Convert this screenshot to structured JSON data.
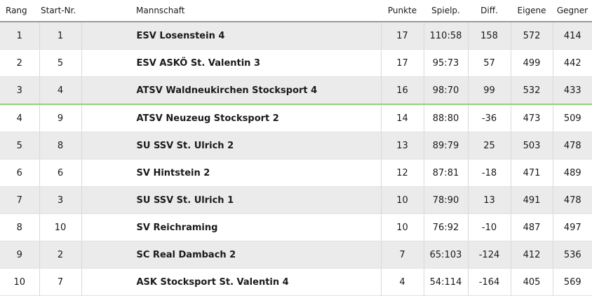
{
  "headers": {
    "rang": "Rang",
    "start_nr": "Start-Nr.",
    "mannschaft": "Mannschaft",
    "punkte": "Punkte",
    "spielp": "Spielp.",
    "diff": "Diff.",
    "eigene": "Eigene",
    "gegner": "Gegner"
  },
  "rows": [
    {
      "rang": "1",
      "start_nr": "1",
      "mannschaft": "ESV Losenstein 4",
      "punkte": "17",
      "spielp": "110:58",
      "diff": "158",
      "eigene": "572",
      "gegner": "414"
    },
    {
      "rang": "2",
      "start_nr": "5",
      "mannschaft": "ESV ASKÖ St. Valentin 3",
      "punkte": "17",
      "spielp": "95:73",
      "diff": "57",
      "eigene": "499",
      "gegner": "442"
    },
    {
      "rang": "3",
      "start_nr": "4",
      "mannschaft": "ATSV Waldneukirchen Stocksport 4",
      "punkte": "16",
      "spielp": "98:70",
      "diff": "99",
      "eigene": "532",
      "gegner": "433"
    },
    {
      "rang": "4",
      "start_nr": "9",
      "mannschaft": "ATSV Neuzeug Stocksport 2",
      "punkte": "14",
      "spielp": "88:80",
      "diff": "-36",
      "eigene": "473",
      "gegner": "509"
    },
    {
      "rang": "5",
      "start_nr": "8",
      "mannschaft": "SU SSV St. Ulrich 2",
      "punkte": "13",
      "spielp": "89:79",
      "diff": "25",
      "eigene": "503",
      "gegner": "478"
    },
    {
      "rang": "6",
      "start_nr": "6",
      "mannschaft": "SV Hintstein 2",
      "punkte": "12",
      "spielp": "87:81",
      "diff": "-18",
      "eigene": "471",
      "gegner": "489"
    },
    {
      "rang": "7",
      "start_nr": "3",
      "mannschaft": "SU SSV St. Ulrich 1",
      "punkte": "10",
      "spielp": "78:90",
      "diff": "13",
      "eigene": "491",
      "gegner": "478"
    },
    {
      "rang": "8",
      "start_nr": "10",
      "mannschaft": "SV Reichraming",
      "punkte": "10",
      "spielp": "76:92",
      "diff": "-10",
      "eigene": "487",
      "gegner": "497"
    },
    {
      "rang": "9",
      "start_nr": "2",
      "mannschaft": "SC Real Dambach 2",
      "punkte": "7",
      "spielp": "65:103",
      "diff": "-124",
      "eigene": "412",
      "gegner": "536"
    },
    {
      "rang": "10",
      "start_nr": "7",
      "mannschaft": "ASK Stocksport St. Valentin 4",
      "punkte": "4",
      "spielp": "54:114",
      "diff": "-164",
      "eigene": "405",
      "gegner": "569"
    }
  ]
}
